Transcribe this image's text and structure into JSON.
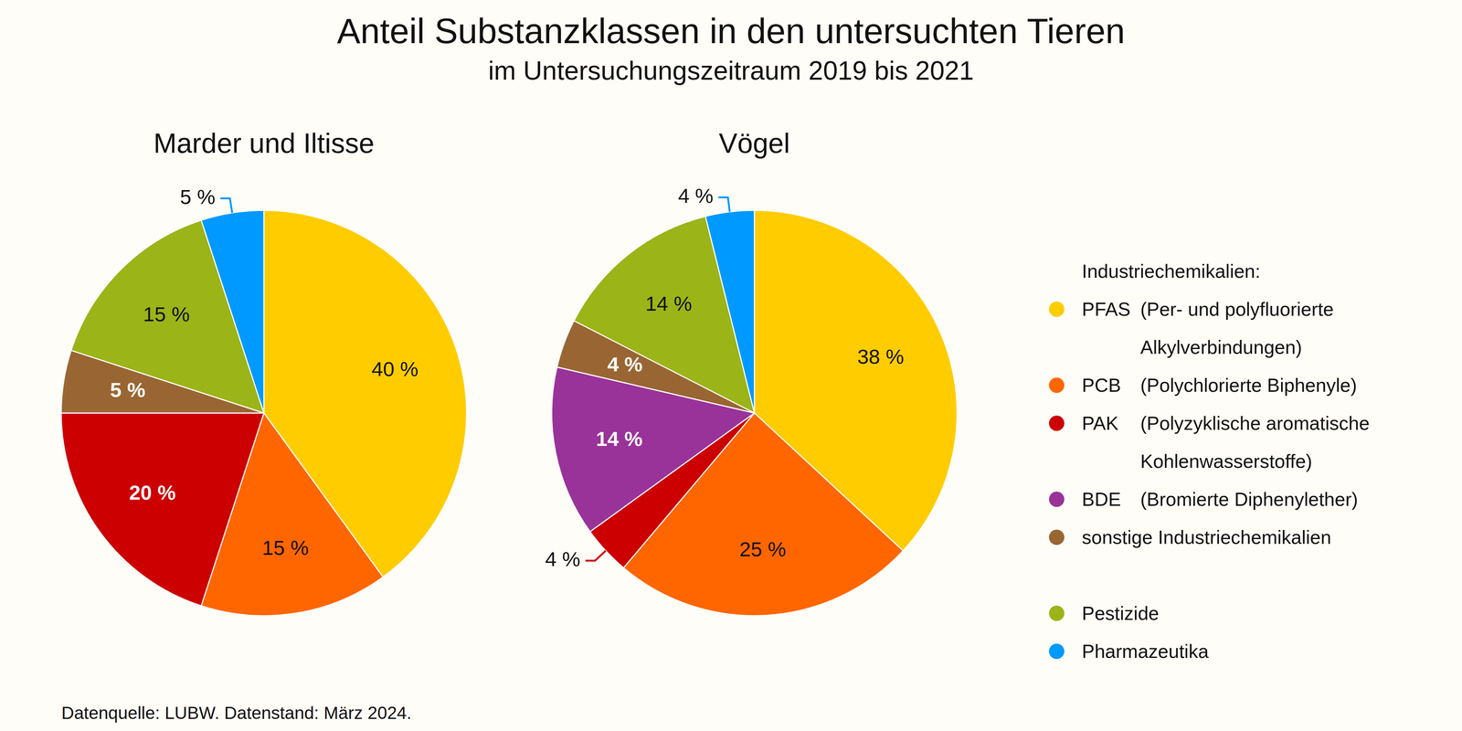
{
  "title": "Anteil Substanzklassen in den untersuchten Tieren",
  "subtitle": "im Untersuchungszeitraum 2019 bis 2021",
  "source": "Datenquelle: LUBW. Datenstand: März 2024.",
  "legend_groups": [
    {
      "heading": "Industriechemikalien:",
      "items": [
        {
          "name": "PFAS",
          "description": "(Per- und polyfluorierte Alkylverbindungen)",
          "color": "#ffcc00"
        },
        {
          "name": "PCB",
          "description": "(Polychlorierte Biphenyle)",
          "color": "#ff6600"
        },
        {
          "name": "PAK",
          "description": "(Polyzyklische aromatische Kohlenwasserstoffe)",
          "color": "#cc0000"
        },
        {
          "name": "BDE",
          "description": "(Bromierte Diphenylether)",
          "color": "#993399"
        },
        {
          "name": "sonstige Industriechemikalien",
          "color": "#996633"
        }
      ]
    },
    {
      "items": [
        {
          "name": "Pestizide",
          "color": "#9bb418"
        },
        {
          "name": "Pharmazeutika",
          "color": "#0099ff"
        }
      ]
    }
  ],
  "chart_data": [
    {
      "type": "pie",
      "title": "Marder und Iltisse",
      "categories": [
        "PFAS",
        "PCB",
        "PAK",
        "sonstige Industriechemikalien",
        "Pestizide",
        "Pharmazeutika"
      ],
      "values": [
        40,
        15,
        20,
        5,
        15,
        5
      ],
      "value_labels": [
        "40 %",
        "15 %",
        "20 %",
        "5 %",
        "15 %",
        "5 %"
      ],
      "data_labels": true
    },
    {
      "type": "pie",
      "title": "Vögel",
      "categories": [
        "PFAS",
        "PCB",
        "PAK",
        "BDE",
        "sonstige Industriechemikalien",
        "Pestizide",
        "Pharmazeutika"
      ],
      "values": [
        38,
        25,
        4,
        14,
        4,
        14,
        4
      ],
      "value_labels": [
        "38 %",
        "25 %",
        "4 %",
        "14 %",
        "4 %",
        "14 %",
        "4 %"
      ],
      "data_labels": true
    }
  ]
}
